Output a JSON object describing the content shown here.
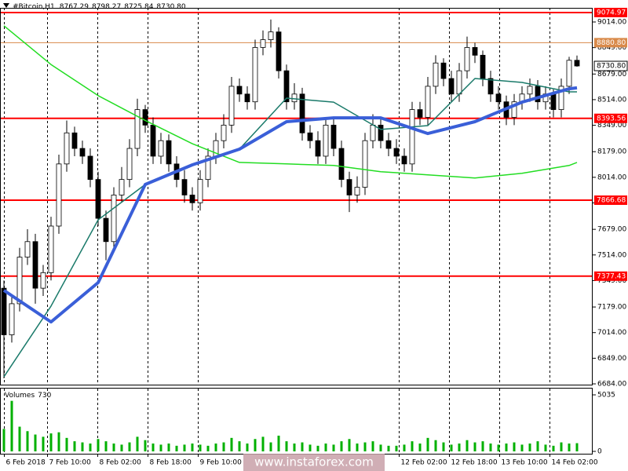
{
  "chart_data": {
    "type": "candlestick",
    "symbol": "#Bitcoin,H1",
    "header_values": [
      {
        "value": 8767.29,
        "label": "8767.29"
      },
      {
        "value": 8798.27,
        "label": "8798.27"
      },
      {
        "value": 8725.84,
        "label": "8725.84"
      },
      {
        "value": 8730.8,
        "label": "8730.80"
      }
    ],
    "open": [
      7300,
      7000,
      7200,
      7500,
      7600,
      7300,
      7400,
      7700,
      8100,
      8300,
      8200,
      8150,
      8000,
      7750,
      7600,
      7900,
      8000,
      8200,
      8450,
      8350,
      8150,
      8250,
      8100,
      8000,
      7900,
      7850,
      8000,
      8150,
      8250,
      8350,
      8600,
      8550,
      8500,
      8850,
      8900,
      8950,
      8700,
      8500,
      8550,
      8300,
      8250,
      8150,
      8350,
      8200,
      8000,
      7900,
      7950,
      8250,
      8350,
      8250,
      8200,
      8150,
      8100,
      8450,
      8400,
      8600,
      8750,
      8650,
      8550,
      8700,
      8850,
      8800,
      8650,
      8550,
      8500,
      8400,
      8500,
      8550,
      8600,
      8500,
      8550,
      8450,
      8600,
      8767.29
    ],
    "high": [
      7350,
      7250,
      7560,
      7680,
      7650,
      7450,
      7760,
      8160,
      8380,
      8340,
      8250,
      8200,
      8050,
      7800,
      7950,
      8080,
      8260,
      8520,
      8480,
      8400,
      8300,
      8290,
      8150,
      8060,
      7950,
      8060,
      8200,
      8300,
      8420,
      8660,
      8650,
      8600,
      8900,
      8960,
      9030,
      8980,
      8740,
      8620,
      8590,
      8350,
      8310,
      8400,
      8390,
      8250,
      8050,
      8020,
      8300,
      8420,
      8400,
      8300,
      8260,
      8200,
      8500,
      8500,
      8660,
      8800,
      8780,
      8700,
      8750,
      8920,
      8880,
      8830,
      8700,
      8600,
      8540,
      8550,
      8600,
      8650,
      8640,
      8600,
      8580,
      8650,
      8790,
      8798.27
    ],
    "low": [
      6720,
      6950,
      7150,
      7450,
      7200,
      7250,
      7350,
      7650,
      8050,
      8150,
      8100,
      7950,
      7700,
      7480,
      7560,
      7850,
      7950,
      8150,
      8300,
      8100,
      8100,
      8050,
      7950,
      7850,
      7800,
      7800,
      7950,
      8100,
      8200,
      8300,
      8500,
      8450,
      8450,
      8800,
      8850,
      8650,
      8450,
      8450,
      8250,
      8200,
      8100,
      8100,
      8150,
      7950,
      7790,
      7850,
      7900,
      8200,
      8200,
      8150,
      8100,
      8050,
      8050,
      8350,
      8350,
      8550,
      8600,
      8500,
      8500,
      8650,
      8750,
      8600,
      8500,
      8450,
      8350,
      8350,
      8450,
      8500,
      8450,
      8450,
      8400,
      8400,
      8550,
      8725.84
    ],
    "close": [
      7000,
      7200,
      7500,
      7600,
      7300,
      7400,
      7700,
      8100,
      8300,
      8200,
      8150,
      8000,
      7750,
      7600,
      7900,
      8000,
      8200,
      8450,
      8350,
      8150,
      8250,
      8100,
      8000,
      7900,
      7850,
      8000,
      8150,
      8250,
      8350,
      8600,
      8550,
      8500,
      8850,
      8900,
      8950,
      8700,
      8500,
      8550,
      8300,
      8250,
      8150,
      8350,
      8200,
      8000,
      7900,
      7950,
      8250,
      8350,
      8250,
      8200,
      8150,
      8100,
      8450,
      8400,
      8600,
      8750,
      8650,
      8550,
      8700,
      8850,
      8800,
      8650,
      8550,
      8500,
      8400,
      8500,
      8550,
      8600,
      8500,
      8550,
      8450,
      8600,
      8767.29,
      8730.8
    ],
    "up_color": "#ffffff",
    "down_color": "#000000",
    "xlim": [
      -0.5,
      75
    ],
    "ylim": [
      6679,
      9105
    ],
    "xticks": [
      {
        "value": 0,
        "label": "6 Feb 2018"
      },
      {
        "value": 5.5,
        "label": "7 Feb 10:00"
      },
      {
        "value": 11.9,
        "label": "8 Feb 02:00"
      },
      {
        "value": 18.3,
        "label": "8 Feb 18:00"
      },
      {
        "value": 24.7,
        "label": "9 Feb 10:00"
      },
      {
        "value": 50.3,
        "label": "12 Feb 02:00"
      },
      {
        "value": 56.7,
        "label": "12 Feb 18:00"
      },
      {
        "value": 63.1,
        "label": "13 Feb 10:00"
      },
      {
        "value": 69.5,
        "label": "14 Feb 02:00"
      }
    ],
    "yticks": [
      {
        "value": 9014,
        "label": "9014.00"
      },
      {
        "value": 8849,
        "label": "8849.00"
      },
      {
        "value": 8679,
        "label": "8679.00"
      },
      {
        "value": 8514,
        "label": "8514.00"
      },
      {
        "value": 8349,
        "label": "8349.00"
      },
      {
        "value": 8179,
        "label": "8179.00"
      },
      {
        "value": 8014,
        "label": "8014.00"
      },
      {
        "value": 7849,
        "label": "7849.00"
      },
      {
        "value": 7679,
        "label": "7679.00"
      },
      {
        "value": 7514,
        "label": "7514.00"
      },
      {
        "value": 7349,
        "label": "7349.00"
      },
      {
        "value": 7179,
        "label": "7179.00"
      },
      {
        "value": 7014,
        "label": "7014.00"
      },
      {
        "value": 6849,
        "label": "6849.00"
      },
      {
        "value": 6684,
        "label": "6684.00"
      }
    ],
    "moving_averages": [
      {
        "color": "#22dd22",
        "x": [
          0,
          6,
          12,
          18,
          24,
          30,
          36,
          42,
          48,
          54,
          60,
          66,
          72,
          73
        ],
        "values": [
          8990,
          8740,
          8540,
          8380,
          8230,
          8110,
          8100,
          8090,
          8050,
          8030,
          8010,
          8040,
          8090,
          8110
        ]
      },
      {
        "color": "#1a7a6a",
        "x": [
          0,
          6,
          12,
          18,
          24,
          30,
          36,
          42,
          48,
          54,
          60,
          66,
          72,
          73
        ],
        "values": [
          6730,
          7185,
          7740,
          7968,
          8094,
          8195,
          8524,
          8498,
          8322,
          8347,
          8650,
          8625,
          8564,
          8564
        ]
      },
      {
        "color": "#3a5fd8",
        "x": [
          0,
          6,
          12,
          18,
          24,
          30,
          36,
          42,
          48,
          54,
          60,
          66,
          72,
          73
        ],
        "values": [
          7286,
          7083,
          7336,
          7968,
          8094,
          8195,
          8372,
          8397,
          8397,
          8296,
          8372,
          8498,
          8584,
          8590
        ]
      }
    ],
    "levels": [
      {
        "value": 9074.97,
        "label": "9074.97",
        "color": "#ff0000"
      },
      {
        "value": 8880.8,
        "label": "8880.80",
        "color": "#d98a4a"
      },
      {
        "value": 8393.56,
        "label": "8393.56",
        "color": "#ff0000"
      },
      {
        "value": 7866.68,
        "label": "7866.68",
        "color": "#ff0000"
      },
      {
        "value": 7377.43,
        "label": "7377.43",
        "color": "#ff0000"
      }
    ],
    "last_price": {
      "value": 8730.8,
      "label": "8730.80"
    },
    "volume": {
      "title": "Volumes",
      "color": "#00b000",
      "ylim": [
        0,
        5035
      ],
      "yticks": [
        0,
        5035
      ],
      "values": [
        2000,
        4500,
        2200,
        1800,
        1500,
        1300,
        1600,
        1700,
        1200,
        900,
        800,
        700,
        1100,
        900,
        700,
        600,
        800,
        1300,
        1000,
        700,
        600,
        700,
        500,
        600,
        700,
        600,
        500,
        700,
        800,
        1200,
        900,
        700,
        1100,
        1300,
        800,
        1400,
        900,
        700,
        800,
        600,
        500,
        700,
        600,
        900,
        1100,
        700,
        800,
        900,
        600,
        500,
        500,
        600,
        900,
        700,
        1200,
        1000,
        800,
        600,
        700,
        1000,
        800,
        900,
        700,
        600,
        700,
        800,
        600,
        700,
        900,
        600,
        500,
        800,
        700,
        730
      ]
    },
    "watermark": "www.instaforex.com"
  }
}
